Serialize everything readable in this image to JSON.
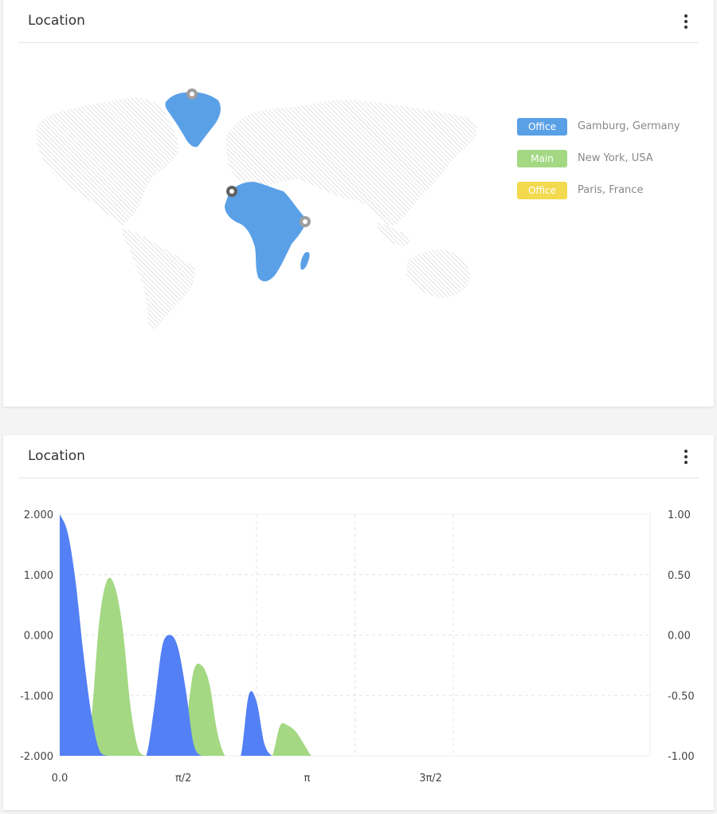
{
  "map_card": {
    "title": "Location",
    "menu_icon": "kebab-menu-icon",
    "map": {
      "highlight_color": "#5aa0e6",
      "base_color": "#d0d0d0",
      "highlighted_regions": [
        "Greenland",
        "Africa",
        "Madagascar"
      ],
      "markers": 3
    },
    "legend": [
      {
        "badge": "Office",
        "label": "Gamburg, Germany",
        "color": "#5aa0e6"
      },
      {
        "badge": "Main",
        "label": "New York, USA",
        "color": "#a4d883"
      },
      {
        "badge": "Office",
        "label": "Paris, France",
        "color": "#f2d94e"
      }
    ]
  },
  "chart_card": {
    "title": "Location",
    "menu_icon": "kebab-menu-icon",
    "chart_data": {
      "type": "area",
      "x_tick_labels": [
        "0.0",
        "π/2",
        "π",
        "3π/2"
      ],
      "x_ticks": [
        0,
        1.5708,
        3.1416,
        4.7124
      ],
      "xlim": [
        0,
        7.5
      ],
      "y_left_ticks": [
        "2.000",
        "1.000",
        "0.000",
        "-1.000",
        "-2.000"
      ],
      "ylim_left": [
        -2,
        2
      ],
      "y_right_ticks": [
        "1.00",
        "0.50",
        "0.00",
        "-0.50",
        "-1.00"
      ],
      "ylim_right": [
        -1,
        1
      ],
      "grid": true,
      "series": [
        {
          "color": "#5480f6",
          "x": [
            0,
            0.1,
            0.2,
            0.3,
            0.4,
            0.5,
            0.6,
            0.7,
            0.8,
            0.9,
            1.0,
            1.1,
            1.2,
            1.3,
            1.4,
            1.5,
            1.6,
            1.7,
            1.8,
            1.9,
            2.0,
            2.1,
            2.2,
            2.3,
            2.4,
            2.5,
            2.6,
            2.7,
            2.8,
            2.9,
            3.0
          ],
          "y": [
            2.0,
            1.7,
            0.9,
            -0.3,
            -1.3,
            -1.9,
            -2.0,
            -2.0,
            -2.0,
            -2.0,
            -2.0,
            -2.0,
            -1.2,
            -0.2,
            0.0,
            -0.2,
            -0.9,
            -1.8,
            -2.0,
            -2.0,
            -2.0,
            -2.0,
            -2.0,
            -2.0,
            -1.0,
            -1.1,
            -1.8,
            -2.0,
            -2.0,
            -2.0,
            -2.0
          ]
        },
        {
          "color": "#a4d883",
          "x": [
            0.3,
            0.4,
            0.5,
            0.6,
            0.7,
            0.8,
            0.9,
            1.0,
            1.1,
            1.2,
            1.3,
            1.4,
            1.5,
            1.6,
            1.7,
            1.8,
            1.9,
            2.0,
            2.1,
            2.2,
            2.3,
            2.4,
            2.5,
            2.6,
            2.7,
            2.8,
            2.9,
            3.0,
            3.1,
            3.2,
            3.3,
            3.4
          ],
          "y": [
            -2.0,
            -1.4,
            0.2,
            0.9,
            0.8,
            0.1,
            -1.2,
            -1.9,
            -2.0,
            -2.0,
            -2.0,
            -2.0,
            -2.0,
            -1.5,
            -0.6,
            -0.5,
            -0.8,
            -1.6,
            -2.0,
            -2.0,
            -2.0,
            -2.0,
            -2.0,
            -2.0,
            -2.0,
            -1.5,
            -1.5,
            -1.6,
            -1.8,
            -2.0,
            -2.0,
            -2.0
          ]
        }
      ]
    }
  }
}
